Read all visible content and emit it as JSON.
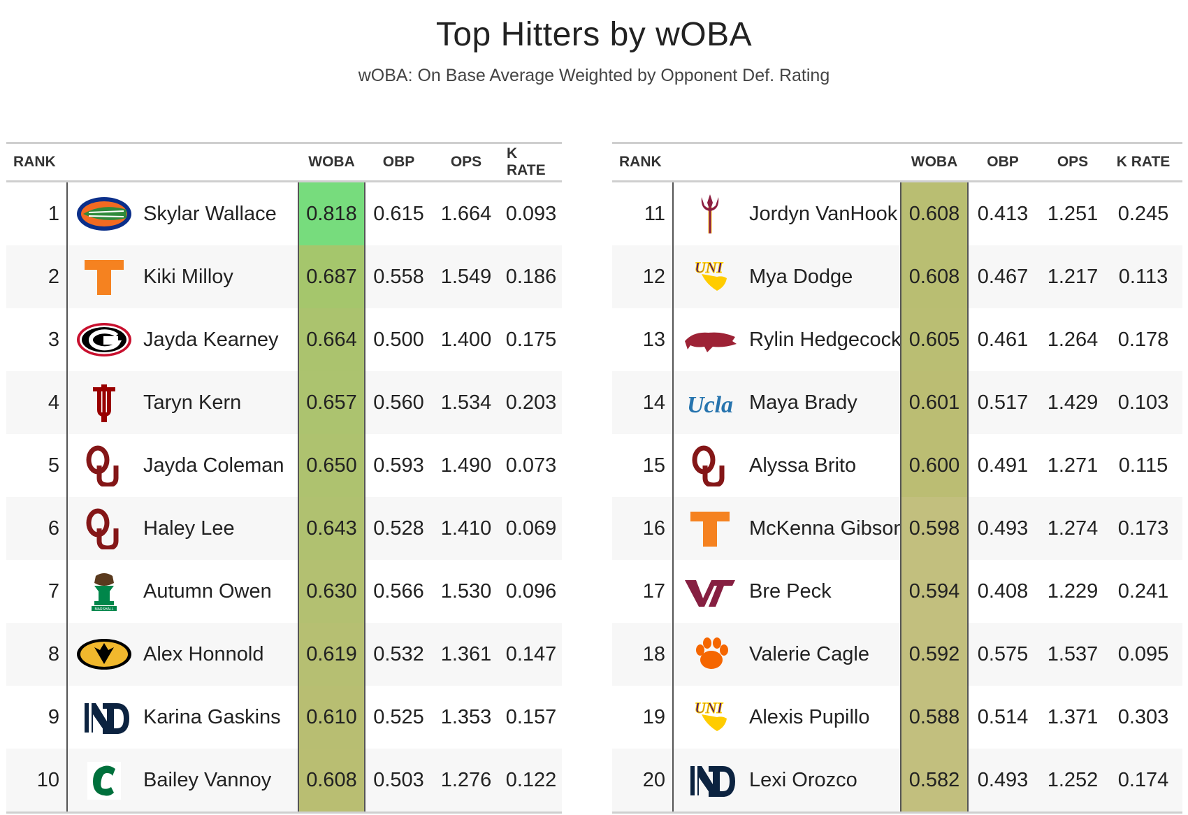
{
  "title": "Top Hitters by wOBA",
  "subtitle": "wOBA: On Base Average Weighted by Opponent Def. Rating",
  "colors": {
    "woba_high": "#77dc7d",
    "woba_mid": "#a4c36e",
    "woba_low": "#c2bf7e"
  },
  "chart_data": {
    "type": "table",
    "columns": {
      "rank": "RANK",
      "woba": "WOBA",
      "obp": "OBP",
      "ops": "OPS",
      "k_rate": "K RATE"
    },
    "rows": [
      {
        "rank": "1",
        "logo": "florida-gators-icon",
        "name": "Skylar Wallace",
        "woba": "0.818",
        "obp": "0.615",
        "ops": "1.664",
        "k_rate": "0.093"
      },
      {
        "rank": "2",
        "logo": "tennessee-t-icon",
        "name": "Kiki Milloy",
        "woba": "0.687",
        "obp": "0.558",
        "ops": "1.549",
        "k_rate": "0.186"
      },
      {
        "rank": "3",
        "logo": "georgia-g-icon",
        "name": "Jayda Kearney",
        "woba": "0.664",
        "obp": "0.500",
        "ops": "1.400",
        "k_rate": "0.175"
      },
      {
        "rank": "4",
        "logo": "indiana-iu-icon",
        "name": "Taryn Kern",
        "woba": "0.657",
        "obp": "0.560",
        "ops": "1.534",
        "k_rate": "0.203"
      },
      {
        "rank": "5",
        "logo": "oklahoma-ou-icon",
        "name": "Jayda Coleman",
        "woba": "0.650",
        "obp": "0.593",
        "ops": "1.490",
        "k_rate": "0.073"
      },
      {
        "rank": "6",
        "logo": "oklahoma-ou-icon",
        "name": "Haley Lee",
        "woba": "0.643",
        "obp": "0.528",
        "ops": "1.410",
        "k_rate": "0.069"
      },
      {
        "rank": "7",
        "logo": "marshall-bison-icon",
        "logo_text": "MARSHALL",
        "name": "Autumn Owen",
        "woba": "0.630",
        "obp": "0.566",
        "ops": "1.530",
        "k_rate": "0.096"
      },
      {
        "rank": "8",
        "logo": "missouri-tiger-icon",
        "name": "Alex Honnold",
        "woba": "0.619",
        "obp": "0.532",
        "ops": "1.361",
        "k_rate": "0.147"
      },
      {
        "rank": "9",
        "logo": "notre-dame-nd-icon",
        "name": "Karina Gaskins",
        "woba": "0.610",
        "obp": "0.525",
        "ops": "1.353",
        "k_rate": "0.157"
      },
      {
        "rank": "10",
        "logo": "charlotte-c-icon",
        "name": "Bailey Vannoy",
        "woba": "0.608",
        "obp": "0.503",
        "ops": "1.276",
        "k_rate": "0.122"
      },
      {
        "rank": "11",
        "logo": "arizona-state-pitchfork-icon",
        "name": "Jordyn VanHook",
        "woba": "0.608",
        "obp": "0.413",
        "ops": "1.251",
        "k_rate": "0.245"
      },
      {
        "rank": "12",
        "logo": "uni-panther-icon",
        "logo_text": "UNI",
        "name": "Mya Dodge",
        "woba": "0.608",
        "obp": "0.467",
        "ops": "1.217",
        "k_rate": "0.113"
      },
      {
        "rank": "13",
        "logo": "arkansas-razorback-icon",
        "name": "Rylin Hedgecock",
        "woba": "0.605",
        "obp": "0.461",
        "ops": "1.264",
        "k_rate": "0.178"
      },
      {
        "rank": "14",
        "logo": "ucla-script-icon",
        "logo_text": "Ucla",
        "name": "Maya Brady",
        "woba": "0.601",
        "obp": "0.517",
        "ops": "1.429",
        "k_rate": "0.103"
      },
      {
        "rank": "15",
        "logo": "oklahoma-ou-icon",
        "name": "Alyssa Brito",
        "woba": "0.600",
        "obp": "0.491",
        "ops": "1.271",
        "k_rate": "0.115"
      },
      {
        "rank": "16",
        "logo": "tennessee-t-icon",
        "name": "McKenna Gibson",
        "woba": "0.598",
        "obp": "0.493",
        "ops": "1.274",
        "k_rate": "0.173"
      },
      {
        "rank": "17",
        "logo": "virginia-tech-vt-icon",
        "name": "Bre Peck",
        "woba": "0.594",
        "obp": "0.408",
        "ops": "1.229",
        "k_rate": "0.241"
      },
      {
        "rank": "18",
        "logo": "clemson-paw-icon",
        "name": "Valerie Cagle",
        "woba": "0.592",
        "obp": "0.575",
        "ops": "1.537",
        "k_rate": "0.095"
      },
      {
        "rank": "19",
        "logo": "uni-panther-icon",
        "logo_text": "UNI",
        "name": "Alexis Pupillo",
        "woba": "0.588",
        "obp": "0.514",
        "ops": "1.371",
        "k_rate": "0.303"
      },
      {
        "rank": "20",
        "logo": "notre-dame-nd-icon",
        "name": "Lexi Orozco",
        "woba": "0.582",
        "obp": "0.493",
        "ops": "1.252",
        "k_rate": "0.174"
      }
    ]
  }
}
